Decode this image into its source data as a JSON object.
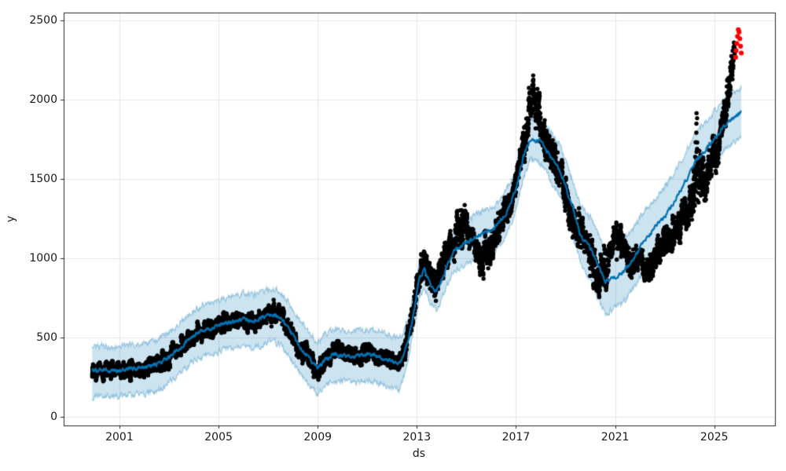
{
  "chart_data": {
    "type": "scatter",
    "title": "",
    "xlabel": "ds",
    "ylabel": "y",
    "xlim": [
      1998.75,
      2027.45
    ],
    "ylim": [
      -55,
      2550
    ],
    "x_ticks": [
      2001,
      2005,
      2009,
      2013,
      2017,
      2021,
      2025
    ],
    "y_ticks": [
      0,
      500,
      1000,
      1500,
      2000,
      2500
    ],
    "grid": true,
    "legend": "none",
    "colors": {
      "observations": "#000000",
      "forecast_line": "#0072B2",
      "uncertainty_band_fill": "rgba(0,114,178,0.2)",
      "uncertainty_band_edge": "rgba(0,114,178,0.35)",
      "anomaly_points": "#ff0000",
      "grid_line": "#e6e6e6",
      "spine": "#262626",
      "tick_text": "#1a1a1a"
    },
    "series": [
      {
        "name": "observations-black-dots",
        "style": "scatter-black",
        "note": "daily points approximated by trend center and half-spread",
        "trend": [
          [
            1999.9,
            290,
            45
          ],
          [
            2000.5,
            290,
            45
          ],
          [
            2001.0,
            295,
            45
          ],
          [
            2001.5,
            305,
            50
          ],
          [
            2002.0,
            300,
            45
          ],
          [
            2002.5,
            330,
            50
          ],
          [
            2003.0,
            380,
            55
          ],
          [
            2003.5,
            445,
            55
          ],
          [
            2004.0,
            520,
            60
          ],
          [
            2004.4,
            545,
            55
          ],
          [
            2004.8,
            565,
            55
          ],
          [
            2005.2,
            590,
            55
          ],
          [
            2005.6,
            605,
            55
          ],
          [
            2006.0,
            615,
            50
          ],
          [
            2006.4,
            600,
            55
          ],
          [
            2006.8,
            630,
            55
          ],
          [
            2007.2,
            655,
            50
          ],
          [
            2007.5,
            630,
            55
          ],
          [
            2007.8,
            560,
            60
          ],
          [
            2008.2,
            455,
            65
          ],
          [
            2008.6,
            370,
            60
          ],
          [
            2009.0,
            280,
            55
          ],
          [
            2009.4,
            370,
            55
          ],
          [
            2009.8,
            415,
            45
          ],
          [
            2010.2,
            395,
            50
          ],
          [
            2010.6,
            390,
            50
          ],
          [
            2011.0,
            400,
            50
          ],
          [
            2011.4,
            385,
            50
          ],
          [
            2011.8,
            360,
            50
          ],
          [
            2012.2,
            345,
            50
          ],
          [
            2012.5,
            405,
            60
          ],
          [
            2012.75,
            560,
            80
          ],
          [
            2012.9,
            700,
            90
          ],
          [
            2013.1,
            920,
            90
          ],
          [
            2013.3,
            990,
            80
          ],
          [
            2013.5,
            880,
            90
          ],
          [
            2013.75,
            820,
            85
          ],
          [
            2014.0,
            940,
            95
          ],
          [
            2014.4,
            1090,
            110
          ],
          [
            2014.85,
            1240,
            150
          ],
          [
            2015.2,
            1120,
            100
          ],
          [
            2015.6,
            980,
            110
          ],
          [
            2016.0,
            1080,
            110
          ],
          [
            2016.4,
            1220,
            90
          ],
          [
            2016.8,
            1380,
            90
          ],
          [
            2017.1,
            1550,
            90
          ],
          [
            2017.4,
            1800,
            120
          ],
          [
            2017.65,
            2050,
            120
          ],
          [
            2017.9,
            1900,
            130
          ],
          [
            2018.2,
            1720,
            110
          ],
          [
            2018.6,
            1600,
            100
          ],
          [
            2019.0,
            1380,
            110
          ],
          [
            2019.4,
            1210,
            110
          ],
          [
            2019.8,
            1120,
            100
          ],
          [
            2020.1,
            950,
            130
          ],
          [
            2020.4,
            880,
            110
          ],
          [
            2020.7,
            1000,
            110
          ],
          [
            2021.0,
            1120,
            110
          ],
          [
            2021.3,
            1090,
            100
          ],
          [
            2021.6,
            950,
            90
          ],
          [
            2021.9,
            990,
            90
          ],
          [
            2022.2,
            930,
            90
          ],
          [
            2022.5,
            960,
            90
          ],
          [
            2022.9,
            1080,
            100
          ],
          [
            2023.3,
            1160,
            90
          ],
          [
            2023.7,
            1240,
            100
          ],
          [
            2024.0,
            1330,
            120
          ],
          [
            2024.3,
            1600,
            250
          ],
          [
            2024.6,
            1480,
            160
          ],
          [
            2024.9,
            1620,
            130
          ],
          [
            2025.2,
            1750,
            120
          ],
          [
            2025.45,
            1900,
            120
          ],
          [
            2025.65,
            2150,
            150
          ],
          [
            2025.82,
            2330,
            80
          ]
        ]
      },
      {
        "name": "forecast-yhat-with-interval",
        "style": "line-blue-band",
        "note": "rows are [year, yhat, lower, upper]",
        "points": [
          [
            1999.9,
            290,
            125,
            440
          ],
          [
            2000.3,
            298,
            133,
            448
          ],
          [
            2000.7,
            288,
            122,
            438
          ],
          [
            2001.1,
            296,
            131,
            446
          ],
          [
            2001.6,
            306,
            141,
            456
          ],
          [
            2002.0,
            308,
            143,
            458
          ],
          [
            2002.5,
            330,
            163,
            482
          ],
          [
            2003.0,
            378,
            212,
            532
          ],
          [
            2003.5,
            442,
            280,
            598
          ],
          [
            2004.0,
            512,
            352,
            668
          ],
          [
            2004.4,
            545,
            386,
            703
          ],
          [
            2004.8,
            560,
            398,
            718
          ],
          [
            2005.2,
            586,
            422,
            744
          ],
          [
            2005.6,
            602,
            436,
            762
          ],
          [
            2006.0,
            616,
            448,
            778
          ],
          [
            2006.4,
            601,
            432,
            768
          ],
          [
            2006.8,
            627,
            458,
            790
          ],
          [
            2007.2,
            646,
            476,
            812
          ],
          [
            2007.5,
            626,
            452,
            792
          ],
          [
            2007.8,
            560,
            386,
            726
          ],
          [
            2008.2,
            460,
            290,
            626
          ],
          [
            2008.6,
            380,
            212,
            546
          ],
          [
            2009.0,
            305,
            138,
            468
          ],
          [
            2009.3,
            356,
            192,
            516
          ],
          [
            2009.6,
            392,
            226,
            552
          ],
          [
            2010.0,
            386,
            222,
            546
          ],
          [
            2010.4,
            380,
            216,
            540
          ],
          [
            2010.8,
            386,
            222,
            546
          ],
          [
            2011.2,
            392,
            226,
            552
          ],
          [
            2011.6,
            372,
            206,
            532
          ],
          [
            2012.0,
            346,
            182,
            506
          ],
          [
            2012.3,
            332,
            172,
            490
          ],
          [
            2012.5,
            400,
            255,
            548
          ],
          [
            2012.7,
            520,
            395,
            648
          ],
          [
            2012.9,
            680,
            565,
            798
          ],
          [
            2013.1,
            868,
            758,
            980
          ],
          [
            2013.3,
            928,
            818,
            1040
          ],
          [
            2013.55,
            828,
            714,
            944
          ],
          [
            2013.8,
            792,
            672,
            912
          ],
          [
            2014.1,
            900,
            776,
            1026
          ],
          [
            2014.5,
            1058,
            928,
            1190
          ],
          [
            2015.0,
            1096,
            962,
            1232
          ],
          [
            2015.5,
            1146,
            1010,
            1282
          ],
          [
            2016.1,
            1180,
            1042,
            1320
          ],
          [
            2016.6,
            1280,
            1140,
            1422
          ],
          [
            2017.0,
            1440,
            1298,
            1582
          ],
          [
            2017.3,
            1640,
            1508,
            1772
          ],
          [
            2017.6,
            1752,
            1626,
            1878
          ],
          [
            2018.0,
            1736,
            1600,
            1872
          ],
          [
            2018.4,
            1642,
            1490,
            1794
          ],
          [
            2018.8,
            1546,
            1384,
            1708
          ],
          [
            2019.3,
            1310,
            1138,
            1482
          ],
          [
            2019.6,
            1146,
            964,
            1328
          ],
          [
            2020.0,
            1062,
            868,
            1256
          ],
          [
            2020.3,
            962,
            758,
            1166
          ],
          [
            2020.6,
            856,
            652,
            1060
          ],
          [
            2021.0,
            882,
            688,
            1096
          ],
          [
            2021.3,
            906,
            712,
            1110
          ],
          [
            2021.7,
            986,
            798,
            1182
          ],
          [
            2022.1,
            1092,
            904,
            1282
          ],
          [
            2022.6,
            1192,
            1008,
            1378
          ],
          [
            2023.1,
            1282,
            1100,
            1466
          ],
          [
            2023.7,
            1442,
            1264,
            1622
          ],
          [
            2024.3,
            1622,
            1448,
            1798
          ],
          [
            2025.0,
            1752,
            1588,
            1926
          ],
          [
            2025.5,
            1852,
            1694,
            2022
          ],
          [
            2026.1,
            1928,
            1778,
            2076
          ]
        ]
      },
      {
        "name": "anomalies-red-dots",
        "style": "scatter-red",
        "points": [
          [
            2025.86,
            2268
          ],
          [
            2025.88,
            2310
          ],
          [
            2025.91,
            2355
          ],
          [
            2025.94,
            2400
          ],
          [
            2025.97,
            2442
          ],
          [
            2026.0,
            2428
          ],
          [
            2026.03,
            2385
          ],
          [
            2026.06,
            2338
          ],
          [
            2026.09,
            2295
          ]
        ]
      }
    ]
  }
}
